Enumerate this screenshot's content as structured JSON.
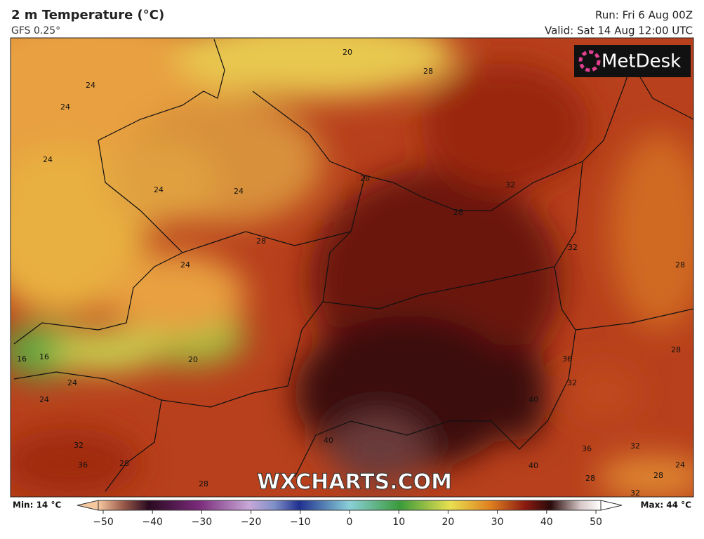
{
  "header": {
    "title": "2 m Temperature (°C)",
    "subtitle": "GFS 0.25°",
    "run": "Run: Fri 6 Aug 00Z",
    "valid": "Valid: Sat 14 Aug 12:00 UTC"
  },
  "logo": "MetDesk",
  "watermark": "WXCHARTS.COM",
  "contour_labels": [
    20,
    28,
    24,
    24,
    24,
    24,
    24,
    28,
    32,
    28,
    28,
    32,
    24,
    28,
    20,
    16,
    16,
    24,
    24,
    36,
    32,
    40,
    28,
    40,
    32,
    36,
    28,
    40,
    36,
    32,
    24,
    28,
    28,
    32,
    28
  ],
  "legend": {
    "min": "Min: 14 °C",
    "max": "Max: 44 °C",
    "ticks": [
      {
        "value": -50,
        "label": "−50"
      },
      {
        "value": -40,
        "label": "−40"
      },
      {
        "value": -30,
        "label": "−30"
      },
      {
        "value": -20,
        "label": "−20"
      },
      {
        "value": -10,
        "label": "−10"
      },
      0,
      10,
      20,
      30,
      40,
      50
    ]
  }
}
